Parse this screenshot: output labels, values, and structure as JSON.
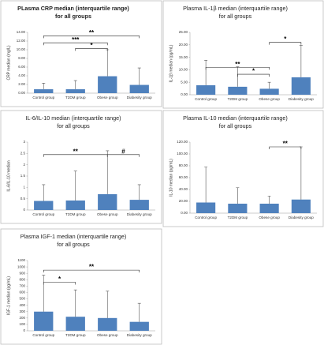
{
  "chart_data": [
    {
      "type": "bar",
      "title": [
        "PLasma CRP median (interquartile range)",
        "for all groups"
      ],
      "title_bold": true,
      "y_label": "CRP median (mg/L)",
      "categories": [
        "Control group",
        "T2DM group",
        "Obese group",
        "Diabesity group"
      ],
      "values": [
        0.9,
        0.9,
        3.9,
        1.9
      ],
      "errors": [
        1.4,
        2.0,
        6.1,
        3.9
      ],
      "color": "#4f81bd",
      "ylim": [
        0,
        14
      ],
      "yticks": [
        {
          "value": 0,
          "label": "0.00"
        },
        {
          "value": 2,
          "label": "2.00"
        },
        {
          "value": 4,
          "label": "4.00"
        },
        {
          "value": 6,
          "label": "6.00"
        },
        {
          "value": 8,
          "label": "8.00"
        },
        {
          "value": 10,
          "label": "10.00"
        },
        {
          "value": 12,
          "label": "12.00"
        },
        {
          "value": 14,
          "label": "14.00"
        }
      ],
      "annotations": [
        {
          "text": "**",
          "level": 13.2,
          "between": [
            "Control group",
            "Diabesity group"
          ]
        },
        {
          "text": "***",
          "level": 11.6,
          "between": [
            "Control group",
            "Obese group"
          ]
        },
        {
          "text": "*",
          "level": 10.3,
          "between": [
            "T2DM group",
            "Obese group"
          ]
        }
      ]
    },
    {
      "type": "bar",
      "title": [
        "Plasma IL-1β median (interquartile range)",
        "for all groups"
      ],
      "title_bold": false,
      "y_label": "IL-1β median (pg/mL)",
      "categories": [
        "Control group",
        "T2DM group",
        "Obese group",
        "Diabesity group"
      ],
      "values": [
        3.8,
        3.2,
        2.4,
        7.0
      ],
      "errors": [
        10.0,
        8.0,
        2.6,
        12.8
      ],
      "color": "#4f81bd",
      "ylim": [
        0,
        25
      ],
      "yticks": [
        {
          "value": 0,
          "label": "0.00"
        },
        {
          "value": 5,
          "label": "5.00"
        },
        {
          "value": 10,
          "label": "10.00"
        },
        {
          "value": 15,
          "label": "15.00"
        },
        {
          "value": 20,
          "label": "20.00"
        },
        {
          "value": 25,
          "label": "25.00"
        }
      ],
      "annotations": [
        {
          "text": "**",
          "level": 11.0,
          "between": [
            "Control group",
            "Obese group"
          ]
        },
        {
          "text": "*",
          "level": 8.2,
          "between": [
            "T2DM group",
            "Obese group"
          ]
        },
        {
          "text": "*",
          "level": 21.0,
          "between": [
            "Obese group",
            "Diabesity group"
          ]
        }
      ]
    },
    {
      "type": "bar",
      "title": [
        "IL-6/IL-10 median (interquartile range)",
        "for all groups"
      ],
      "title_bold": false,
      "y_label": "IL-6/IL-10 median",
      "categories": [
        "Control group",
        "T2DM group",
        "Obese group",
        "Diabesity group"
      ],
      "values": [
        0.4,
        0.42,
        0.7,
        0.45
      ],
      "errors": [
        0.72,
        1.3,
        1.92,
        0.67
      ],
      "color": "#4f81bd",
      "ylim": [
        0,
        3
      ],
      "yticks": [
        0,
        0.5,
        1,
        1.5,
        2,
        2.5,
        3
      ],
      "annotations": [
        {
          "text": "**",
          "level": 2.45,
          "between": [
            "Control group",
            "Obese group"
          ]
        },
        {
          "text": "#",
          "level": 2.45,
          "between": [
            "Obese group",
            "Diabesity group"
          ]
        }
      ]
    },
    {
      "type": "bar",
      "title": [
        "Plasma IL-10 median (interquartile range)",
        "for all groups"
      ],
      "title_bold": false,
      "y_label": "IL-10 median (pg/mL)",
      "categories": [
        "Control group",
        "T2DM group",
        "Obese group",
        "Diabesity group"
      ],
      "values": [
        18,
        16,
        16,
        23
      ],
      "errors": [
        60,
        27,
        13,
        89
      ],
      "color": "#4f81bd",
      "ylim": [
        0,
        120
      ],
      "yticks": [
        {
          "value": 0,
          "label": "0.00"
        },
        {
          "value": 20,
          "label": "20.00"
        },
        {
          "value": 40,
          "label": "40.00"
        },
        {
          "value": 60,
          "label": "60.00"
        },
        {
          "value": 80,
          "label": "80.00"
        },
        {
          "value": 100,
          "label": "100.00"
        },
        {
          "value": 120,
          "label": "120.00"
        }
      ],
      "annotations": [
        {
          "text": "**",
          "level": 112,
          "between": [
            "Obese group",
            "Diabesity group"
          ]
        }
      ]
    },
    {
      "type": "bar",
      "title": [
        "Plasma IGF-1 median (interquartile range)",
        "for all groups"
      ],
      "title_bold": false,
      "y_label": "IGF-1 median (pg/mL)",
      "categories": [
        "Control group",
        "T2DM group",
        "Obese group",
        "Diabesity group"
      ],
      "values": [
        300,
        220,
        200,
        140
      ],
      "errors": [
        570,
        420,
        420,
        290
      ],
      "color": "#4f81bd",
      "ylim": [
        0,
        1100
      ],
      "yticks": [
        0,
        100,
        200,
        300,
        400,
        500,
        600,
        700,
        800,
        900,
        1000,
        1100
      ],
      "annotations": [
        {
          "text": "**",
          "level": 950,
          "between": [
            "Control group",
            "Diabesity group"
          ]
        },
        {
          "text": "*",
          "level": 760,
          "between": [
            "Control group",
            "T2DM group"
          ]
        }
      ]
    }
  ]
}
